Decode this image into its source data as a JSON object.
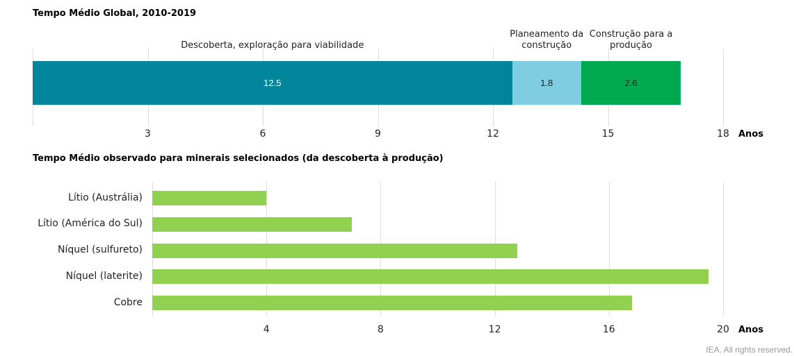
{
  "chart_data": [
    {
      "type": "stacked-bar",
      "title": "Tempo Médio Global, 2010-2019",
      "series": [
        {
          "name": "Descoberta, exploração para viabilidade",
          "color": "#00859b",
          "values": [
            12.5
          ]
        },
        {
          "name": "Planeamento da construção",
          "color": "#7ecde0",
          "values": [
            1.8
          ]
        },
        {
          "name": "Construção para a produção",
          "color": "#00a84f",
          "values": [
            2.6
          ]
        }
      ],
      "xlim": [
        0,
        18
      ],
      "xticks": [
        3,
        6,
        9,
        12,
        15,
        18
      ],
      "xlabel": "Anos",
      "grid": true
    },
    {
      "type": "bar",
      "title": "Tempo Médio observado para minerais selecionados (da descoberta à produção)",
      "categories": [
        "Lítio (Austrália)",
        "Lítio (América do Sul)",
        "Níquel (sulfureto)",
        "Níquel (laterite)",
        "Cobre"
      ],
      "values": [
        4,
        7,
        12.8,
        19.5,
        16.8
      ],
      "color": "#92d050",
      "xlim": [
        0,
        20
      ],
      "xticks": [
        4,
        8,
        12,
        16,
        20
      ],
      "xlabel": "Anos",
      "grid": true
    }
  ],
  "footer": "IEA. All rights reserved."
}
